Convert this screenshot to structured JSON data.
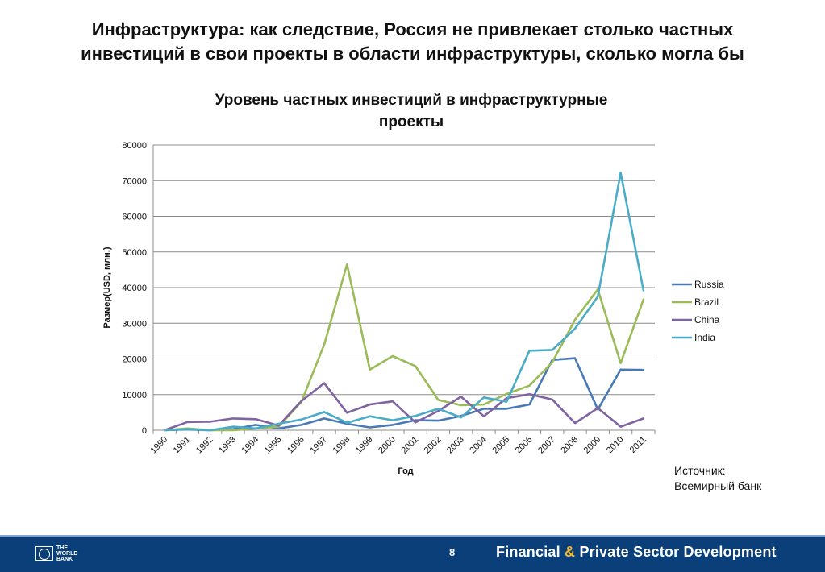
{
  "slide": {
    "title_line1": "Инфраструктура: как следствие, Россия не привлекает столько частных",
    "title_line2": "инвестиций в свои проекты в области инфраструктуры, сколько могла бы",
    "source_line1": "Источник:",
    "source_line2": "Всемирный банк"
  },
  "footer": {
    "logo_line1": "THE",
    "logo_line2": "WORLD",
    "logo_line3": "BANK",
    "page_number": "8",
    "tagline_part1": "Financial",
    "tagline_amp": "&",
    "tagline_part2": "Private Sector Development",
    "bar_color": "#0a3f7a"
  },
  "chart_data": {
    "type": "line",
    "title_line1": "Уровень частных инвестиций в инфраструктурные",
    "title_line2": "проекты",
    "xlabel": "Год",
    "ylabel": "Размер(USD, млн.)",
    "ylim": [
      0,
      80000
    ],
    "yticks": [
      0,
      10000,
      20000,
      30000,
      40000,
      50000,
      60000,
      70000,
      80000
    ],
    "grid": true,
    "legend_position": "right",
    "categories": [
      "1990",
      "1991",
      "1992",
      "1993",
      "1994",
      "1995",
      "1996",
      "1997",
      "1998",
      "1999",
      "2000",
      "2001",
      "2002",
      "2003",
      "2004",
      "2005",
      "2006",
      "2007",
      "2008",
      "2009",
      "2010",
      "2011"
    ],
    "series": [
      {
        "name": "Russia",
        "color": "#4a7ab5",
        "values": [
          0,
          200,
          0,
          300,
          1500,
          500,
          1500,
          3300,
          1800,
          800,
          1500,
          2800,
          2700,
          4000,
          6000,
          6000,
          7200,
          19700,
          20200,
          5800,
          17000,
          16900
        ]
      },
      {
        "name": "Brazil",
        "color": "#9bbb59",
        "values": [
          0,
          500,
          0,
          0,
          500,
          1000,
          8000,
          24000,
          46500,
          17000,
          20800,
          18000,
          8500,
          7000,
          7200,
          10200,
          12500,
          19000,
          31000,
          39500,
          18800,
          36700
        ]
      },
      {
        "name": "China",
        "color": "#8064a2",
        "values": [
          0,
          2300,
          2400,
          3300,
          3100,
          1300,
          8200,
          13200,
          4900,
          7200,
          8100,
          2200,
          5400,
          9400,
          3900,
          9000,
          10100,
          8600,
          2000,
          6200,
          1000,
          3300
        ]
      },
      {
        "name": "India",
        "color": "#4bacc6",
        "values": [
          0,
          300,
          0,
          1000,
          500,
          1800,
          3000,
          5100,
          2100,
          3900,
          2800,
          4000,
          6000,
          3600,
          9200,
          8000,
          22300,
          22500,
          28500,
          37500,
          72200,
          39200
        ]
      }
    ]
  }
}
